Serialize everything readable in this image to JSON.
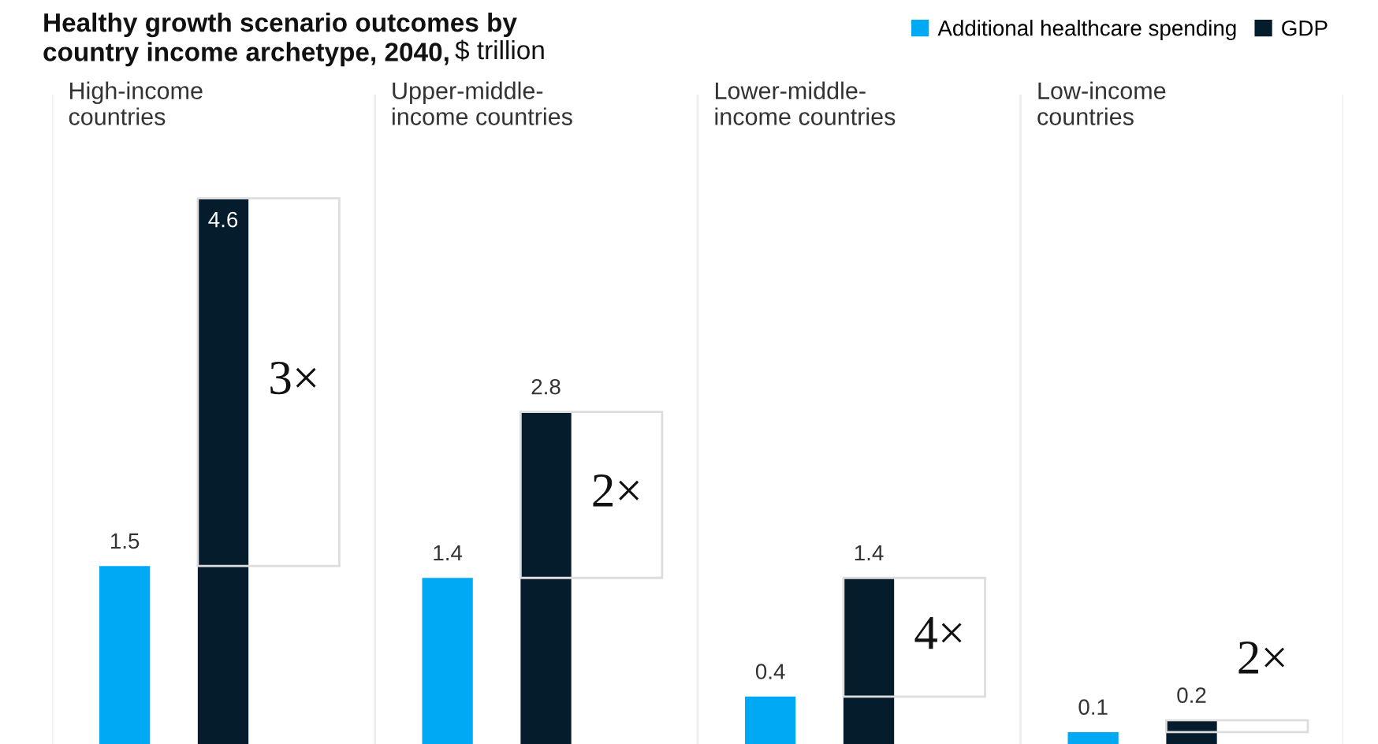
{
  "chart_data": {
    "type": "bar",
    "title": "Healthy growth scenario outcomes by\ncountry income archetype, 2040,",
    "subtitle": "$ trillion",
    "categories": [
      "High-income\ncountries",
      "Upper-middle-\nincome countries",
      "Lower-middle-\nincome countries",
      "Low-income\ncountries"
    ],
    "series": [
      {
        "name": "Additional healthcare spending",
        "color": "#00a9f4",
        "values": [
          1.5,
          1.4,
          0.4,
          0.1
        ]
      },
      {
        "name": "GDP",
        "color": "#051c2c",
        "values": [
          4.6,
          2.8,
          1.4,
          0.2
        ]
      }
    ],
    "annotations": [
      "3×",
      "2×",
      "4×",
      "2×"
    ],
    "data_labels": true,
    "legend": "top right"
  }
}
